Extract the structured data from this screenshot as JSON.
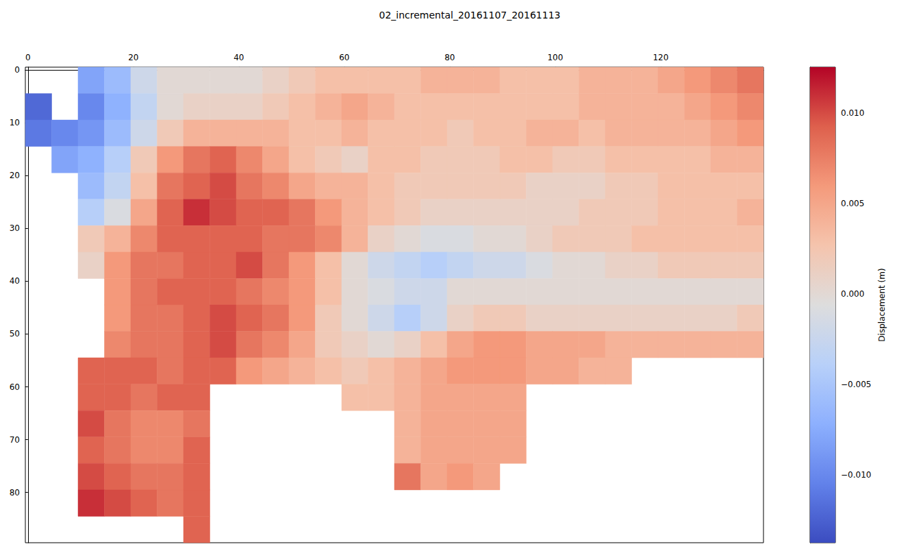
{
  "chart_data": {
    "type": "heatmap",
    "title": "02_incremental_20161107_20161113",
    "color": "coolwarm",
    "grid": false,
    "x": [
      2,
      7,
      12,
      17,
      22,
      27,
      32,
      37,
      42,
      47,
      52,
      57,
      62,
      67,
      72,
      77,
      82,
      87,
      92,
      97,
      102,
      107,
      112,
      117,
      122,
      127,
      132,
      137
    ],
    "y": [
      2,
      7,
      12,
      17,
      22,
      27,
      32,
      37,
      42,
      47,
      52,
      57,
      62,
      67,
      72,
      77,
      82,
      87
    ],
    "xlim": [
      -0.5,
      139.5
    ],
    "ylim": [
      89.5,
      -0.5
    ],
    "xticks": [
      0,
      20,
      40,
      60,
      80,
      100,
      120
    ],
    "yticks": [
      0,
      10,
      20,
      30,
      40,
      50,
      60,
      70,
      80
    ],
    "z": [
      [
        null,
        null,
        -0.008,
        -0.006,
        -0.002,
        0.0,
        0.0,
        0.0,
        0.0,
        0.001,
        0.002,
        0.003,
        0.003,
        0.003,
        0.003,
        0.004,
        0.004,
        0.004,
        0.003,
        0.003,
        0.003,
        0.004,
        0.004,
        0.004,
        0.005,
        0.006,
        0.007,
        0.008
      ],
      [
        -0.012,
        null,
        -0.01,
        -0.007,
        -0.003,
        0.0,
        0.001,
        0.001,
        0.001,
        0.002,
        0.003,
        0.004,
        0.005,
        0.004,
        0.003,
        0.003,
        0.003,
        0.003,
        0.003,
        0.003,
        0.003,
        0.004,
        0.004,
        0.004,
        0.004,
        0.005,
        0.006,
        0.007
      ],
      [
        -0.011,
        -0.01,
        -0.009,
        -0.006,
        -0.002,
        0.002,
        0.004,
        0.004,
        0.004,
        0.004,
        0.003,
        0.003,
        0.004,
        0.003,
        0.003,
        0.003,
        0.002,
        0.003,
        0.003,
        0.004,
        0.004,
        0.003,
        0.004,
        0.004,
        0.004,
        0.004,
        0.005,
        0.006
      ],
      [
        null,
        -0.008,
        -0.007,
        -0.004,
        0.002,
        0.006,
        0.008,
        0.009,
        0.007,
        0.005,
        0.003,
        0.002,
        0.001,
        0.003,
        0.003,
        0.002,
        0.002,
        0.002,
        0.003,
        0.003,
        0.002,
        0.002,
        0.003,
        0.003,
        0.003,
        0.003,
        0.004,
        0.004
      ],
      [
        null,
        null,
        -0.006,
        -0.003,
        0.003,
        0.008,
        0.009,
        0.01,
        0.008,
        0.007,
        0.005,
        0.004,
        0.004,
        0.003,
        0.002,
        0.002,
        0.002,
        0.002,
        0.002,
        0.001,
        0.001,
        0.001,
        0.002,
        0.002,
        0.003,
        0.003,
        0.003,
        0.003
      ],
      [
        null,
        null,
        -0.004,
        -0.001,
        0.005,
        0.009,
        0.011,
        0.01,
        0.009,
        0.009,
        0.008,
        0.006,
        0.004,
        0.003,
        0.002,
        0.001,
        0.001,
        0.001,
        0.001,
        0.001,
        0.001,
        0.002,
        0.002,
        0.002,
        0.003,
        0.003,
        0.003,
        0.004
      ],
      [
        null,
        null,
        0.002,
        0.004,
        0.007,
        0.009,
        0.009,
        0.009,
        0.009,
        0.008,
        0.008,
        0.007,
        0.004,
        0.001,
        0.0,
        -0.001,
        -0.001,
        0.0,
        0.0,
        0.001,
        0.002,
        0.002,
        0.002,
        0.003,
        0.003,
        0.003,
        0.003,
        0.003
      ],
      [
        null,
        null,
        0.001,
        0.006,
        0.008,
        0.008,
        0.009,
        0.009,
        0.01,
        0.008,
        0.006,
        0.003,
        0.0,
        -0.002,
        -0.003,
        -0.004,
        -0.003,
        -0.002,
        -0.002,
        -0.001,
        0.0,
        0.0,
        0.001,
        0.001,
        0.002,
        0.002,
        0.002,
        0.002
      ],
      [
        null,
        null,
        null,
        0.006,
        0.008,
        0.009,
        0.009,
        0.009,
        0.008,
        0.007,
        0.006,
        0.003,
        0.0,
        -0.001,
        -0.002,
        -0.002,
        0.0,
        0.0,
        0.0,
        0.0,
        0.0,
        0.0,
        0.0,
        0.0,
        0.0,
        0.0,
        0.0,
        0.0
      ],
      [
        null,
        null,
        null,
        0.006,
        0.008,
        0.008,
        0.009,
        0.01,
        0.009,
        0.008,
        0.006,
        0.002,
        0.0,
        -0.002,
        -0.004,
        -0.002,
        0.001,
        0.002,
        0.002,
        0.001,
        0.001,
        0.001,
        0.001,
        0.001,
        0.001,
        0.001,
        0.001,
        0.002
      ],
      [
        null,
        null,
        null,
        0.007,
        0.008,
        0.008,
        0.009,
        0.01,
        0.008,
        0.007,
        0.005,
        0.002,
        0.001,
        0.0,
        0.001,
        0.003,
        0.005,
        0.006,
        0.006,
        0.005,
        0.005,
        0.005,
        0.004,
        0.004,
        0.004,
        0.004,
        0.004,
        0.004
      ],
      [
        null,
        null,
        0.009,
        0.009,
        0.009,
        0.008,
        0.009,
        0.009,
        0.006,
        0.005,
        0.004,
        0.003,
        0.002,
        0.003,
        0.004,
        0.005,
        0.006,
        0.006,
        0.006,
        0.005,
        0.005,
        0.004,
        0.004,
        null,
        null,
        null,
        null,
        null
      ],
      [
        null,
        null,
        0.009,
        0.009,
        0.008,
        0.009,
        0.009,
        null,
        null,
        null,
        null,
        null,
        0.003,
        0.003,
        0.004,
        0.005,
        0.005,
        0.005,
        0.005,
        null,
        null,
        null,
        null,
        null,
        null,
        null,
        null,
        null
      ],
      [
        null,
        null,
        0.01,
        0.008,
        0.007,
        0.007,
        0.008,
        null,
        null,
        null,
        null,
        null,
        null,
        null,
        0.004,
        0.005,
        0.005,
        0.005,
        0.005,
        null,
        null,
        null,
        null,
        null,
        null,
        null,
        null,
        null
      ],
      [
        null,
        null,
        0.009,
        0.008,
        0.007,
        0.007,
        0.009,
        null,
        null,
        null,
        null,
        null,
        null,
        null,
        0.004,
        0.005,
        0.005,
        0.005,
        0.005,
        null,
        null,
        null,
        null,
        null,
        null,
        null,
        null,
        null
      ],
      [
        null,
        null,
        0.01,
        0.009,
        0.008,
        0.008,
        0.009,
        null,
        null,
        null,
        null,
        null,
        null,
        null,
        0.008,
        0.005,
        0.006,
        0.005,
        null,
        null,
        null,
        null,
        null,
        null,
        null,
        null,
        null,
        null
      ],
      [
        null,
        null,
        0.011,
        0.01,
        0.009,
        0.008,
        0.009,
        null,
        null,
        null,
        null,
        null,
        null,
        null,
        null,
        null,
        null,
        null,
        null,
        null,
        null,
        null,
        null,
        null,
        null,
        null,
        null,
        null
      ],
      [
        null,
        null,
        null,
        null,
        null,
        null,
        0.009,
        null,
        null,
        null,
        null,
        null,
        null,
        null,
        null,
        null,
        null,
        null,
        null,
        null,
        null,
        null,
        null,
        null,
        null,
        null,
        null,
        null
      ]
    ],
    "colorbar_label": "Displacement (m)",
    "clim": [
      -0.01375,
      0.01254
    ],
    "cticks": [
      {
        "value": -0.01,
        "label": "−0.010"
      },
      {
        "value": -0.005,
        "label": "−0.005"
      },
      {
        "value": 0,
        "label": "0.000"
      },
      {
        "value": 0.005,
        "label": "0.005"
      },
      {
        "value": 0.01,
        "label": "0.010"
      }
    ]
  }
}
